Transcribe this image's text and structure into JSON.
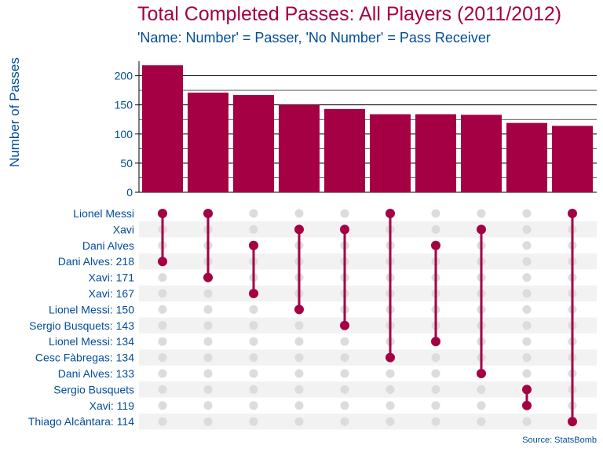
{
  "theme": {
    "accent": "#a50044",
    "text": "#004d98",
    "inactive": "#dcdcdc",
    "stripe": "#f2f2f2"
  },
  "chart_data": {
    "type": "bar",
    "title": "Total Completed Passes: All Players (2011/2012)",
    "subtitle": "'Name: Number' = Passer, 'No Number' = Pass Receiver",
    "ylabel": "Number of Passes",
    "source": "Source: StatsBomb",
    "ylim": [
      0,
      225
    ],
    "yticks": [
      0,
      50,
      100,
      150,
      200
    ],
    "grid": true,
    "values": [
      218,
      171,
      167,
      150,
      143,
      134,
      134,
      133,
      119,
      114
    ],
    "sets": [
      "Lionel Messi",
      "Xavi",
      "Dani Alves",
      "Dani Alves: 218",
      "Xavi: 171",
      "Xavi: 167",
      "Lionel Messi: 150",
      "Sergio Busquets: 143",
      "Lionel Messi: 134",
      "Cesc Fàbregas: 134",
      "Dani Alves: 133",
      "Sergio Busquets",
      "Xavi: 119",
      "Thiago Alcântara: 114"
    ],
    "combinations": [
      [
        "Lionel Messi",
        "Dani Alves: 218"
      ],
      [
        "Lionel Messi",
        "Xavi: 171"
      ],
      [
        "Dani Alves",
        "Xavi: 167"
      ],
      [
        "Xavi",
        "Lionel Messi: 150"
      ],
      [
        "Xavi",
        "Sergio Busquets: 143"
      ],
      [
        "Lionel Messi",
        "Cesc Fàbregas: 134"
      ],
      [
        "Dani Alves",
        "Lionel Messi: 134"
      ],
      [
        "Xavi",
        "Dani Alves: 133"
      ],
      [
        "Sergio Busquets",
        "Xavi: 119"
      ],
      [
        "Lionel Messi",
        "Thiago Alcântara: 114"
      ]
    ]
  }
}
